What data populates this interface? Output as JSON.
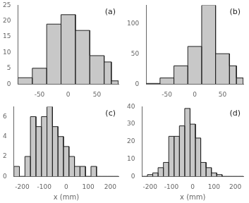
{
  "chart_data": [
    {
      "type": "histogram",
      "bins": [
        -87.5,
        -62.5,
        -37.5,
        -12.5,
        12.5,
        37.5,
        62.5,
        75.0,
        87.5
      ],
      "values": [
        2,
        5,
        19,
        22,
        17,
        9,
        7,
        1
      ],
      "color": "#c8c8c8",
      "xlim": [
        -87.5,
        87.5
      ],
      "ylim": [
        0,
        25
      ],
      "xticks": [
        -50,
        0,
        50
      ],
      "yticks": [
        0,
        5,
        10,
        15,
        20,
        25
      ],
      "annotations": [
        "(a)"
      ],
      "grid": false
    },
    {
      "type": "histogram",
      "bins": [
        -87.5,
        -62.5,
        -37.5,
        -12.5,
        12.5,
        37.5,
        62.5,
        75.0,
        87.5
      ],
      "values": [
        1,
        10,
        30,
        62,
        130,
        50,
        30,
        10
      ],
      "color": "#c8c8c8",
      "xlim": [
        -87.5,
        87.5
      ],
      "ylim": [
        0,
        130
      ],
      "xticks": [
        -50,
        0,
        50
      ],
      "yticks": [
        0,
        50,
        100
      ],
      "annotations": [
        "(b)"
      ],
      "grid": false
    },
    {
      "type": "histogram",
      "bins": [
        -237.5,
        -212.5,
        -187.5,
        -162.5,
        -137.5,
        -112.5,
        -87.5,
        -62.5,
        -37.5,
        -12.5,
        12.5,
        37.5,
        62.5,
        87.5,
        112.5,
        137.5,
        162.5,
        187.5,
        212.5,
        237.5
      ],
      "values": [
        1,
        0,
        2,
        6,
        5,
        6,
        7,
        5,
        4,
        3,
        2,
        1,
        1,
        0,
        1,
        0,
        0,
        0,
        0
      ],
      "color": "#c8c8c8",
      "xlim": [
        -237.5,
        237.5
      ],
      "ylim": [
        0,
        7
      ],
      "xticks": [
        -200,
        -100,
        0,
        100,
        200
      ],
      "yticks": [
        0,
        2,
        4,
        6
      ],
      "xlabel": "x (mm)",
      "annotations": [
        "(c)"
      ],
      "grid": false
    },
    {
      "type": "histogram",
      "bins": [
        -237.5,
        -212.5,
        -187.5,
        -162.5,
        -137.5,
        -112.5,
        -87.5,
        -62.5,
        -37.5,
        -12.5,
        12.5,
        37.5,
        62.5,
        87.5,
        112.5,
        137.5,
        162.5,
        187.5,
        212.5,
        237.5
      ],
      "values": [
        0,
        1,
        2,
        5,
        8,
        23,
        23,
        29,
        39,
        30,
        22,
        8,
        5,
        2,
        1,
        0,
        0,
        0,
        0
      ],
      "color": "#c8c8c8",
      "xlim": [
        -237.5,
        237.5
      ],
      "ylim": [
        0,
        40
      ],
      "xticks": [
        -200,
        -100,
        0,
        100,
        200
      ],
      "yticks": [
        0,
        10,
        20,
        30,
        40
      ],
      "xlabel": "x (mm)",
      "annotations": [
        "(d)"
      ],
      "grid": false
    }
  ]
}
